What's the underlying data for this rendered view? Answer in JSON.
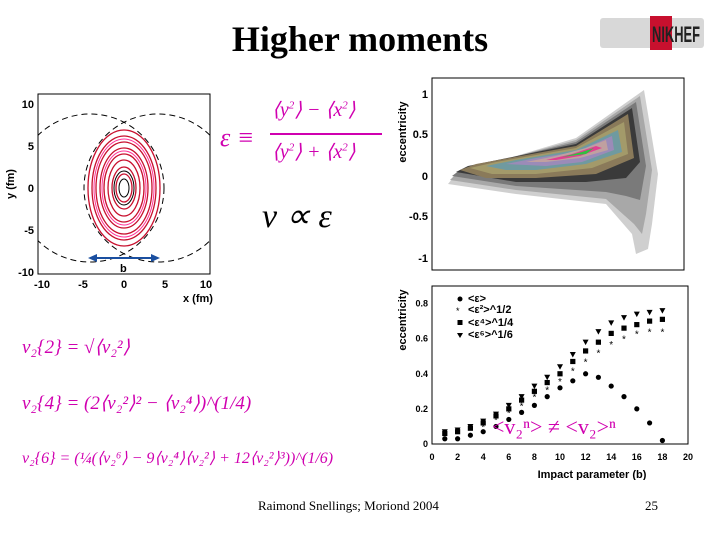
{
  "slide": {
    "title": "Higher moments",
    "footer_author": "Raimond Snellings; Moriond 2004",
    "page_number": "25",
    "colors": {
      "magenta": "#d000b0",
      "contour_red": "#c8102e"
    }
  },
  "logo": {
    "text": "NIKHEF"
  },
  "overlap_plot": {
    "xlabel": "x (fm)",
    "ylabel": "y (fm)",
    "b_label": "b",
    "xticks": [
      "-10",
      "-5",
      "0",
      "5",
      "10"
    ],
    "yticks": [
      "10",
      "5",
      "0",
      "-5",
      "-10"
    ]
  },
  "equations": {
    "epsilon_lhs": "ε ≡",
    "y2": "y",
    "x2": "x",
    "sq": "2",
    "minus": "−",
    "plus": "+",
    "v_prop": "v ∝ ε",
    "v2_2": "v₂{2} = √⟨v₂²⟩",
    "v2_4": "v₂{4} = (2⟨v₂²⟩² − ⟨v₂⁴⟩)^(1/4)",
    "v2_6": "v₂{6} = (¼(⟨v₂⁶⟩ − 9⟨v₂⁴⟩⟨v₂²⟩ + 12⟨v₂²⟩³))^(1/6)"
  },
  "ecc_map": {
    "ylabel": "eccentricity",
    "yticks": [
      "1",
      "0.5",
      "0",
      "-0.5",
      "-1"
    ]
  },
  "ecc_vs_b": {
    "ylabel": "eccentricity",
    "xlabel": "Impact parameter (b)",
    "yticks": [
      "0.8",
      "0.6",
      "0.4",
      "0.2",
      "0"
    ],
    "xticks": [
      "0",
      "2",
      "4",
      "6",
      "8",
      "10",
      "12",
      "14",
      "16",
      "18",
      "20"
    ],
    "inequality": "<v₂ⁿ> ≠ <v₂>ⁿ",
    "legend": [
      "<ε>",
      "<ε²>^1/2",
      "<ε⁴>^1/4",
      "<ε⁶>^1/6"
    ]
  },
  "chart_data": {
    "type": "scatter",
    "xlabel": "Impact parameter (b)",
    "ylabel": "eccentricity",
    "xlim": [
      0,
      20
    ],
    "ylim": [
      0,
      0.9
    ],
    "series": [
      {
        "name": "<ε>",
        "marker": "circle",
        "x": [
          1,
          2,
          3,
          4,
          5,
          6,
          7,
          8,
          9,
          10,
          11,
          12,
          13,
          14,
          15,
          16,
          17,
          18
        ],
        "y": [
          0.03,
          0.03,
          0.05,
          0.07,
          0.1,
          0.14,
          0.18,
          0.22,
          0.27,
          0.32,
          0.36,
          0.4,
          0.38,
          0.33,
          0.27,
          0.2,
          0.12,
          0.02
        ]
      },
      {
        "name": "<ε²>^1/2",
        "marker": "star",
        "x": [
          1,
          2,
          3,
          4,
          5,
          6,
          7,
          8,
          9,
          10,
          11,
          12,
          13,
          14,
          15,
          16,
          17,
          18
        ],
        "y": [
          0.05,
          0.06,
          0.08,
          0.1,
          0.14,
          0.18,
          0.22,
          0.27,
          0.31,
          0.36,
          0.42,
          0.47,
          0.52,
          0.57,
          0.6,
          0.63,
          0.64,
          0.64
        ]
      },
      {
        "name": "<ε⁴>^1/4",
        "marker": "square",
        "x": [
          1,
          2,
          3,
          4,
          5,
          6,
          7,
          8,
          9,
          10,
          11,
          12,
          13,
          14,
          15,
          16,
          17,
          18
        ],
        "y": [
          0.06,
          0.07,
          0.09,
          0.12,
          0.16,
          0.2,
          0.25,
          0.3,
          0.35,
          0.4,
          0.47,
          0.53,
          0.58,
          0.63,
          0.66,
          0.68,
          0.7,
          0.71
        ]
      },
      {
        "name": "<ε⁶>^1/6",
        "marker": "triangle",
        "x": [
          1,
          2,
          3,
          4,
          5,
          6,
          7,
          8,
          9,
          10,
          11,
          12,
          13,
          14,
          15,
          16,
          17,
          18
        ],
        "y": [
          0.07,
          0.08,
          0.1,
          0.13,
          0.17,
          0.22,
          0.27,
          0.33,
          0.38,
          0.44,
          0.51,
          0.58,
          0.64,
          0.69,
          0.72,
          0.74,
          0.75,
          0.76
        ]
      }
    ]
  }
}
